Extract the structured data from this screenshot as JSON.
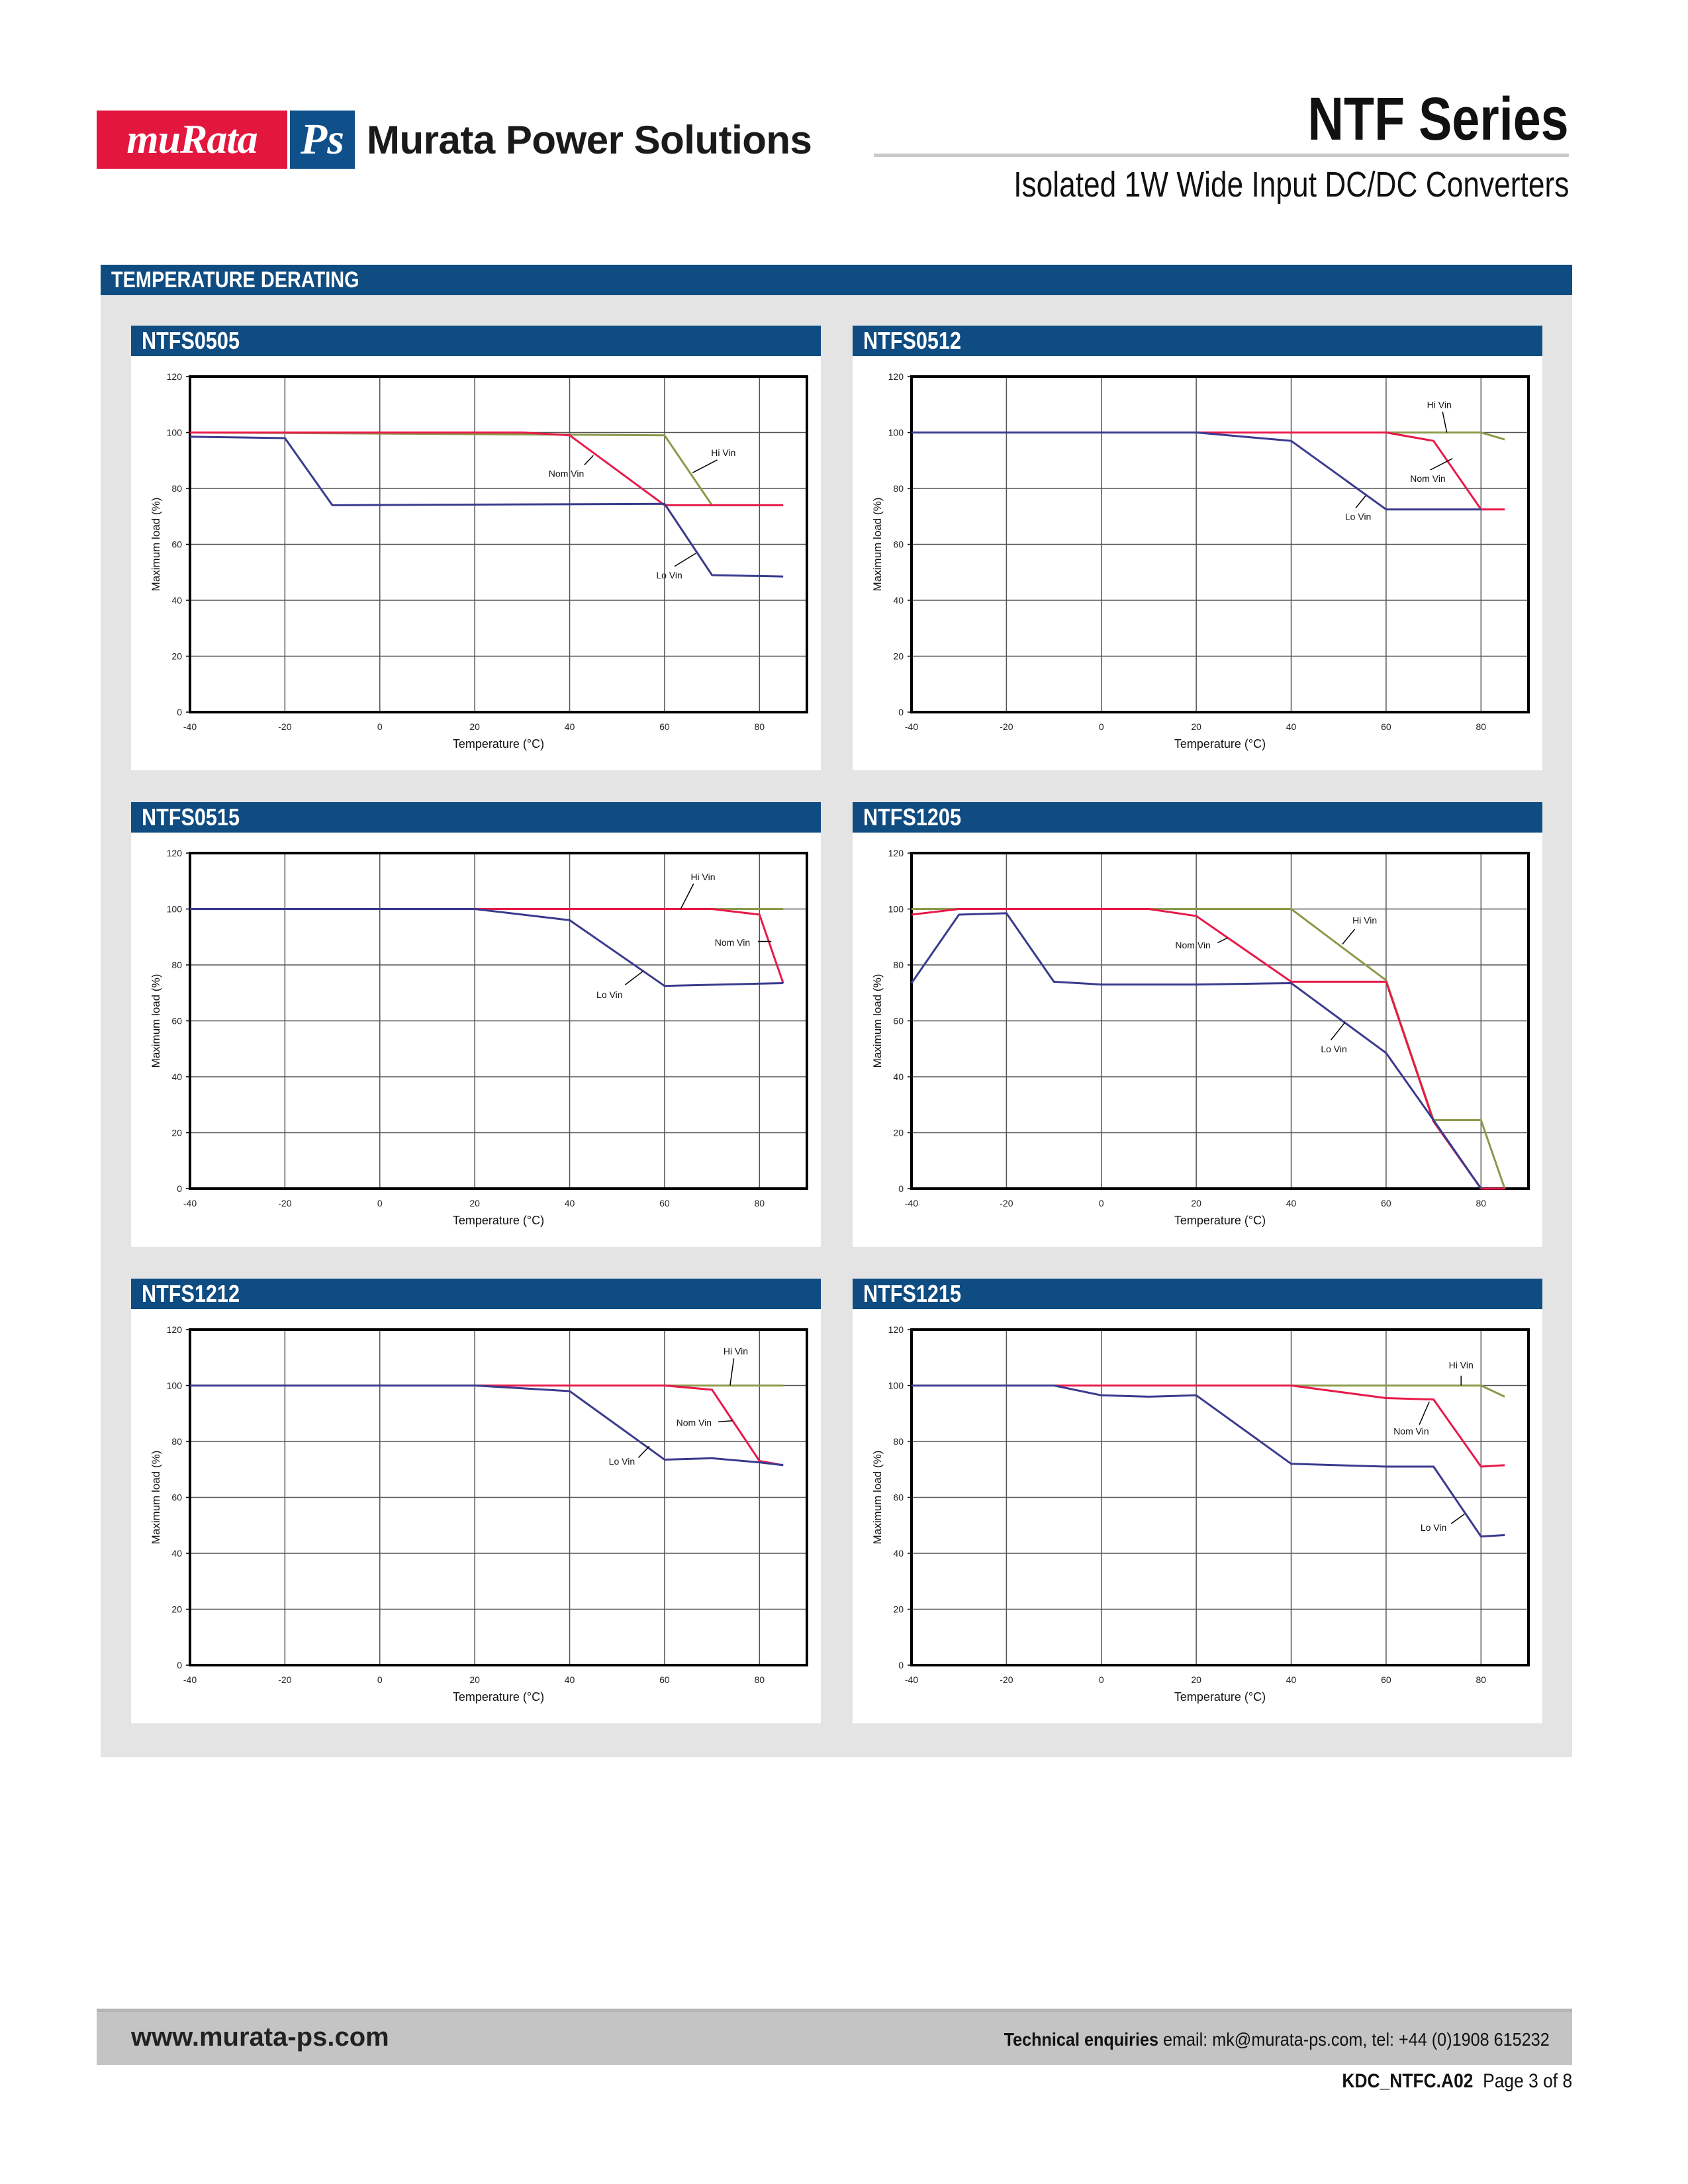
{
  "header": {
    "logo_murata": "muRata",
    "logo_ps": "Ps",
    "company": "Murata Power Solutions",
    "series_title": "NTF Series",
    "subtitle": "Isolated 1W Wide Input DC/DC Converters"
  },
  "section": {
    "title": "TEMPERATURE DERATING"
  },
  "colors": {
    "lo_vin": "#3a3a8e",
    "nom_vin": "#e8194a",
    "hi_vin": "#8c9a4a",
    "header_blue": "#0f4c81",
    "murata_red": "#e3173e"
  },
  "chart_data": [
    {
      "type": "line",
      "title": "NTFS0505",
      "xlabel": "Temperature (°C)",
      "ylabel": "Maximum load (%)",
      "xlim": [
        -40,
        90
      ],
      "ylim": [
        0,
        120
      ],
      "grid": true,
      "xticks": [
        -40,
        -20,
        0,
        20,
        40,
        60,
        80
      ],
      "yticks": [
        0,
        20,
        40,
        60,
        80,
        100,
        120
      ],
      "series": [
        {
          "name": "Hi Vin",
          "x": [
            -40,
            60,
            70,
            85
          ],
          "y": [
            100,
            99,
            74,
            74
          ]
        },
        {
          "name": "Nom Vin",
          "x": [
            -40,
            30,
            40,
            60,
            85
          ],
          "y": [
            100,
            100,
            99,
            74,
            74
          ]
        },
        {
          "name": "Lo Vin",
          "x": [
            -40,
            -20,
            -10,
            60,
            70,
            85
          ],
          "y": [
            98.5,
            98,
            74,
            74.5,
            49,
            48.5
          ]
        }
      ],
      "annotations": [
        {
          "text": "Hi Vin",
          "x": 72.4,
          "y": 92.8,
          "line": [
            [
              71.1,
              90.2
            ],
            [
              65.9,
              85.6
            ]
          ]
        },
        {
          "text": "Nom Vin",
          "x": 39.3,
          "y": 85.3,
          "line": [
            [
              43.1,
              88.4
            ],
            [
              45,
              91.8
            ]
          ]
        },
        {
          "text": "Lo Vin",
          "x": 61,
          "y": 49,
          "line": [
            [
              62.1,
              52.1
            ],
            [
              66.6,
              56.8
            ]
          ]
        }
      ]
    },
    {
      "type": "line",
      "title": "NTFS0512",
      "xlabel": "Temperature (°C)",
      "ylabel": "Maximum load (%)",
      "xlim": [
        -40,
        90
      ],
      "ylim": [
        0,
        120
      ],
      "grid": true,
      "xticks": [
        -40,
        -20,
        0,
        20,
        40,
        60,
        80
      ],
      "yticks": [
        0,
        20,
        40,
        60,
        80,
        100,
        120
      ],
      "series": [
        {
          "name": "Hi Vin",
          "x": [
            -40,
            80,
            85
          ],
          "y": [
            100,
            100,
            97.5
          ]
        },
        {
          "name": "Nom Vin",
          "x": [
            -40,
            60,
            70,
            80,
            85
          ],
          "y": [
            100,
            100,
            97,
            72.5,
            72.5
          ]
        },
        {
          "name": "Lo Vin",
          "x": [
            -40,
            20,
            40,
            60,
            80
          ],
          "y": [
            100,
            100,
            97,
            72.5,
            72.5
          ]
        }
      ],
      "annotations": [
        {
          "text": "Hi Vin",
          "x": 71.2,
          "y": 110,
          "line": [
            [
              71.9,
              107.4
            ],
            [
              72.8,
              100
            ]
          ]
        },
        {
          "text": "Nom Vin",
          "x": 68.8,
          "y": 83.5,
          "line": [
            [
              69.3,
              86.6
            ],
            [
              74,
              90.7
            ]
          ]
        },
        {
          "text": "Lo Vin",
          "x": 54.1,
          "y": 69.9,
          "line": [
            [
              53.6,
              73
            ],
            [
              55.7,
              77.4
            ]
          ]
        }
      ]
    },
    {
      "type": "line",
      "title": "NTFS0515",
      "xlabel": "Temperature (°C)",
      "ylabel": "Maximum load (%)",
      "xlim": [
        -40,
        90
      ],
      "ylim": [
        0,
        120
      ],
      "grid": true,
      "xticks": [
        -40,
        -20,
        0,
        20,
        40,
        60,
        80
      ],
      "yticks": [
        0,
        20,
        40,
        60,
        80,
        100,
        120
      ],
      "series": [
        {
          "name": "Hi Vin",
          "x": [
            -40,
            85
          ],
          "y": [
            100,
            100
          ]
        },
        {
          "name": "Nom Vin",
          "x": [
            -40,
            70,
            80,
            85
          ],
          "y": [
            100,
            100,
            98,
            73.5
          ]
        },
        {
          "name": "Lo Vin",
          "x": [
            -40,
            20,
            40,
            60,
            85
          ],
          "y": [
            100,
            100,
            96,
            72.5,
            73.5
          ]
        }
      ],
      "annotations": [
        {
          "text": "Hi Vin",
          "x": 68.1,
          "y": 111.5,
          "line": [
            [
              66.1,
              109
            ],
            [
              63.4,
              100
            ]
          ]
        },
        {
          "text": "Nom Vin",
          "x": 74.3,
          "y": 88,
          "line": [
            [
              79.7,
              88.4
            ],
            [
              82.5,
              88.4
            ]
          ]
        },
        {
          "text": "Lo Vin",
          "x": 48.4,
          "y": 69.4,
          "line": [
            [
              51.7,
              72.9
            ],
            [
              55.5,
              77.8
            ]
          ]
        }
      ]
    },
    {
      "type": "line",
      "title": "NTFS1205",
      "xlabel": "Temperature (°C)",
      "ylabel": "Maximum load (%)",
      "xlim": [
        -40,
        90
      ],
      "ylim": [
        0,
        120
      ],
      "grid": true,
      "xticks": [
        -40,
        -20,
        0,
        20,
        40,
        60,
        80
      ],
      "yticks": [
        0,
        20,
        40,
        60,
        80,
        100,
        120
      ],
      "series": [
        {
          "name": "Hi Vin",
          "x": [
            -40,
            40,
            60,
            70,
            80,
            85
          ],
          "y": [
            100,
            100,
            74.5,
            24.5,
            24.5,
            0
          ]
        },
        {
          "name": "Nom Vin",
          "x": [
            -40,
            -30,
            10,
            20,
            40,
            60,
            70,
            80,
            85
          ],
          "y": [
            98,
            100,
            100,
            97.5,
            74,
            74,
            24,
            0,
            0
          ]
        },
        {
          "name": "Lo Vin",
          "x": [
            -40,
            -30,
            -20,
            -10,
            0,
            20,
            40,
            60,
            70,
            80
          ],
          "y": [
            73.5,
            98,
            98.5,
            74,
            73,
            73,
            73.5,
            48.5,
            24.5,
            0
          ]
        }
      ],
      "annotations": [
        {
          "text": "Hi Vin",
          "x": 55.5,
          "y": 96,
          "line": [
            [
              53.4,
              92.8
            ],
            [
              50.8,
              87.4
            ]
          ]
        },
        {
          "text": "Nom Vin",
          "x": 19.3,
          "y": 87.1,
          "line": [
            [
              24.5,
              87.9
            ],
            [
              26.6,
              89.7
            ]
          ]
        },
        {
          "text": "Lo Vin",
          "x": 49,
          "y": 50,
          "line": [
            [
              48.4,
              53.2
            ],
            [
              51.3,
              59.4
            ]
          ]
        }
      ]
    },
    {
      "type": "line",
      "title": "NTFS1212",
      "xlabel": "Temperature (°C)",
      "ylabel": "Maximum load (%)",
      "xlim": [
        -40,
        90
      ],
      "ylim": [
        0,
        120
      ],
      "grid": true,
      "xticks": [
        -40,
        -20,
        0,
        20,
        40,
        60,
        80
      ],
      "yticks": [
        0,
        20,
        40,
        60,
        80,
        100,
        120
      ],
      "series": [
        {
          "name": "Hi Vin",
          "x": [
            -40,
            85
          ],
          "y": [
            100,
            100
          ]
        },
        {
          "name": "Nom Vin",
          "x": [
            -40,
            60,
            70,
            80,
            85
          ],
          "y": [
            100,
            100,
            98.5,
            73,
            71.5
          ]
        },
        {
          "name": "Lo Vin",
          "x": [
            -40,
            20,
            40,
            60,
            70,
            80,
            85
          ],
          "y": [
            100,
            100,
            98,
            73.5,
            74,
            72.5,
            71.5
          ]
        }
      ],
      "annotations": [
        {
          "text": "Hi Vin",
          "x": 75,
          "y": 112.3,
          "line": [
            [
              74.6,
              109.7
            ],
            [
              73.8,
              100
            ]
          ]
        },
        {
          "text": "Nom Vin",
          "x": 66.2,
          "y": 86.7,
          "line": [
            [
              71.3,
              87
            ],
            [
              74.3,
              87.4
            ]
          ]
        },
        {
          "text": "Lo Vin",
          "x": 51,
          "y": 72.9,
          "line": [
            [
              54.5,
              74.2
            ],
            [
              56.8,
              78.3
            ]
          ]
        }
      ]
    },
    {
      "type": "line",
      "title": "NTFS1215",
      "xlabel": "Temperature (°C)",
      "ylabel": "Maximum load (%)",
      "xlim": [
        -40,
        90
      ],
      "ylim": [
        0,
        120
      ],
      "grid": true,
      "xticks": [
        -40,
        -20,
        0,
        20,
        40,
        60,
        80
      ],
      "yticks": [
        0,
        20,
        40,
        60,
        80,
        100,
        120
      ],
      "series": [
        {
          "name": "Hi Vin",
          "x": [
            -40,
            80,
            85
          ],
          "y": [
            100,
            100,
            96
          ]
        },
        {
          "name": "Nom Vin",
          "x": [
            -40,
            40,
            60,
            70,
            80,
            85
          ],
          "y": [
            100,
            100,
            95.5,
            95,
            71,
            71.5
          ]
        },
        {
          "name": "Lo Vin",
          "x": [
            -40,
            -10,
            0,
            10,
            20,
            40,
            60,
            70,
            80,
            85
          ],
          "y": [
            100,
            100,
            96.5,
            96,
            96.5,
            72,
            71,
            71,
            46,
            46.5
          ]
        }
      ],
      "annotations": [
        {
          "text": "Hi Vin",
          "x": 75.8,
          "y": 107.3,
          "line": [
            [
              75.8,
              103.5
            ],
            [
              75.8,
              100
            ]
          ]
        },
        {
          "text": "Nom Vin",
          "x": 65.3,
          "y": 83.7,
          "line": [
            [
              67,
              86
            ],
            [
              69.1,
              94.2
            ]
          ]
        },
        {
          "text": "Lo Vin",
          "x": 70,
          "y": 49.2,
          "line": [
            [
              73.7,
              50.6
            ],
            [
              76.5,
              54
            ]
          ]
        }
      ]
    }
  ],
  "footer": {
    "url": "www.murata-ps.com",
    "contact_label": "Technical enquiries",
    "contact_text": " email: mk@murata-ps.com, tel: +44 (0)1908 615232",
    "doc_code": "KDC_NTFC.A02",
    "page": "Page 3 of 8"
  }
}
